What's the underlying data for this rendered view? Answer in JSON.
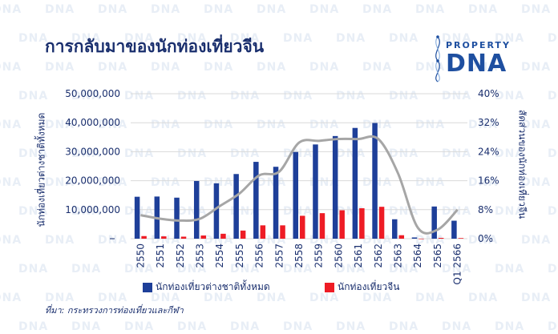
{
  "title": "การกลับมาของนักท่องเที่ยวจีน",
  "logo": {
    "top": "PROPERTY",
    "main": "DNA"
  },
  "watermark": "DNA",
  "source": "ที่มา: กระทรวงการท่องเที่ยวและกีฬา",
  "colors": {
    "total": "#1e3f99",
    "chinese": "#ee1c25",
    "share_line": "#a6a6a6",
    "title": "#1a2f6e"
  },
  "chart_data": {
    "type": "bar",
    "categories": [
      "2550",
      "2551",
      "2552",
      "2553",
      "2554",
      "2555",
      "2556",
      "2557",
      "2558",
      "2559",
      "2560",
      "2561",
      "2562",
      "2563",
      "2564",
      "2565",
      "Q1 2566"
    ],
    "series": [
      {
        "name": "นักท่องเที่ยวต่างชาติทั้งหมด",
        "axis": "left",
        "type": "bar",
        "values": [
          14460000,
          14540000,
          14150000,
          19900000,
          19100000,
          22300000,
          26500000,
          24800000,
          29900000,
          32500000,
          35400000,
          38200000,
          39900000,
          6700000,
          430000,
          11100000,
          6200000
        ]
      },
      {
        "name": "นักท่องเที่ยวจีน",
        "axis": "left",
        "type": "bar",
        "values": [
          900000,
          800000,
          700000,
          1100000,
          1700000,
          2800000,
          4600000,
          4600000,
          7900000,
          8800000,
          9800000,
          10500000,
          11000000,
          1200000,
          13000,
          280000,
          210000
        ]
      },
      {
        "name": "สัดส่วนของนักท่องเที่ยวจีน",
        "axis": "right",
        "type": "line",
        "values": [
          6.5,
          5.5,
          5.0,
          5.5,
          9.0,
          12.5,
          17.5,
          18.5,
          26.5,
          27.0,
          27.5,
          27.5,
          27.5,
          18.0,
          3.0,
          2.5,
          8.0
        ]
      }
    ],
    "y_left": {
      "ticks": [
        "",
        "10,000,000",
        "20,000,000",
        "30,000,000",
        "40,000,000",
        "50,000,000"
      ],
      "ylim": [
        0,
        50000000
      ]
    },
    "y_right": {
      "ticks": [
        "0%",
        "8%",
        "16%",
        "24%",
        "32%",
        "40%"
      ],
      "ylim": [
        0,
        40
      ]
    },
    "ylabel_left": "นักท่องเที่ยวต่างชาติทั้งหมด",
    "ylabel_right": "สัดส่วนของนักท่องเที่ยวจีน",
    "grid": true,
    "legend_position": "bottom"
  }
}
